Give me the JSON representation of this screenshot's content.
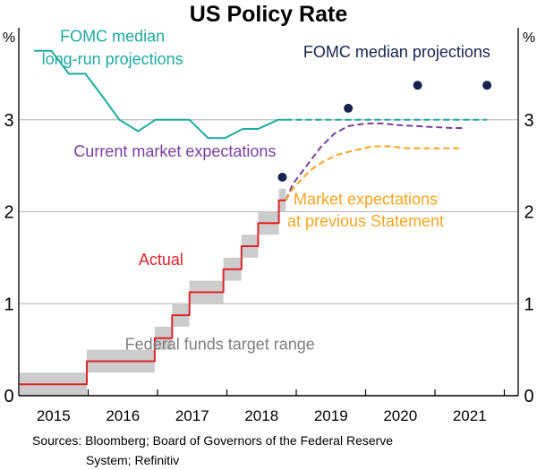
{
  "chart_data": {
    "type": "line",
    "title": "US Policy Rate",
    "y_unit_left": "%",
    "y_unit_right": "%",
    "ylim": [
      0,
      4
    ],
    "yticks": [
      0,
      1,
      2,
      3
    ],
    "xlim": [
      2015.0,
      2022.2
    ],
    "x_tick_boundaries": [
      2016,
      2017,
      2018,
      2019,
      2020,
      2021,
      2022
    ],
    "x_labels": [
      {
        "label": "2015",
        "center": 2015.5
      },
      {
        "label": "2016",
        "center": 2016.5
      },
      {
        "label": "2017",
        "center": 2017.5
      },
      {
        "label": "2018",
        "center": 2018.5
      },
      {
        "label": "2019",
        "center": 2019.5
      },
      {
        "label": "2020",
        "center": 2020.5
      },
      {
        "label": "2021",
        "center": 2021.5
      }
    ],
    "grid": true,
    "target_range": {
      "name": "Federal funds target range",
      "color": "#cccccc",
      "segments": [
        {
          "start": 2015.0,
          "end": 2015.98,
          "low": 0.0,
          "high": 0.25
        },
        {
          "start": 2015.98,
          "end": 2016.96,
          "low": 0.25,
          "high": 0.5
        },
        {
          "start": 2016.96,
          "end": 2017.21,
          "low": 0.5,
          "high": 0.75
        },
        {
          "start": 2017.21,
          "end": 2017.46,
          "low": 0.75,
          "high": 1.0
        },
        {
          "start": 2017.46,
          "end": 2017.95,
          "low": 1.0,
          "high": 1.25
        },
        {
          "start": 2017.95,
          "end": 2018.21,
          "low": 1.25,
          "high": 1.5
        },
        {
          "start": 2018.21,
          "end": 2018.45,
          "low": 1.5,
          "high": 1.75
        },
        {
          "start": 2018.45,
          "end": 2018.75,
          "low": 1.75,
          "high": 2.0
        },
        {
          "start": 2018.75,
          "end": 2018.85,
          "low": 2.0,
          "high": 2.25
        }
      ]
    },
    "series": [
      {
        "name": "Actual",
        "color": "#e0242b",
        "style": "step",
        "points": [
          [
            2015.0,
            0.125
          ],
          [
            2015.98,
            0.125
          ],
          [
            2015.98,
            0.375
          ],
          [
            2016.96,
            0.375
          ],
          [
            2016.96,
            0.625
          ],
          [
            2017.21,
            0.625
          ],
          [
            2017.21,
            0.875
          ],
          [
            2017.46,
            0.875
          ],
          [
            2017.46,
            1.125
          ],
          [
            2017.95,
            1.125
          ],
          [
            2017.95,
            1.375
          ],
          [
            2018.21,
            1.375
          ],
          [
            2018.21,
            1.625
          ],
          [
            2018.45,
            1.625
          ],
          [
            2018.45,
            1.875
          ],
          [
            2018.75,
            1.875
          ],
          [
            2018.75,
            2.125
          ],
          [
            2018.85,
            2.125
          ]
        ]
      },
      {
        "name": "FOMC median long-run projections",
        "color": "#1eaaa0",
        "style": "solid",
        "points": [
          [
            2015.22,
            3.75
          ],
          [
            2015.47,
            3.75
          ],
          [
            2015.72,
            3.5
          ],
          [
            2015.96,
            3.5
          ],
          [
            2016.21,
            3.25
          ],
          [
            2016.45,
            3.0
          ],
          [
            2016.72,
            2.875
          ],
          [
            2016.97,
            3.0
          ],
          [
            2017.21,
            3.0
          ],
          [
            2017.46,
            3.0
          ],
          [
            2017.73,
            2.8
          ],
          [
            2017.97,
            2.8
          ],
          [
            2018.23,
            2.9
          ],
          [
            2018.45,
            2.9
          ],
          [
            2018.74,
            3.0
          ],
          [
            2018.85,
            3.0
          ]
        ]
      },
      {
        "name": "FOMC median long-run projections (extension)",
        "color": "#1eaaa0",
        "style": "dashed",
        "points": [
          [
            2018.85,
            3.0
          ],
          [
            2021.75,
            3.0
          ]
        ]
      },
      {
        "name": "Current market expectations",
        "color": "#7b3f9e",
        "style": "dashed",
        "points": [
          [
            2018.85,
            2.125
          ],
          [
            2018.95,
            2.3
          ],
          [
            2019.05,
            2.4
          ],
          [
            2019.2,
            2.55
          ],
          [
            2019.35,
            2.7
          ],
          [
            2019.55,
            2.85
          ],
          [
            2019.75,
            2.93
          ],
          [
            2020.0,
            2.96
          ],
          [
            2020.25,
            2.96
          ],
          [
            2020.5,
            2.94
          ],
          [
            2020.75,
            2.93
          ],
          [
            2021.0,
            2.92
          ],
          [
            2021.25,
            2.91
          ],
          [
            2021.4,
            2.91
          ]
        ]
      },
      {
        "name": "Market expectations at previous Statement",
        "color": "#f5a623",
        "style": "dashed",
        "points": [
          [
            2018.85,
            2.125
          ],
          [
            2018.95,
            2.25
          ],
          [
            2019.05,
            2.33
          ],
          [
            2019.2,
            2.45
          ],
          [
            2019.4,
            2.55
          ],
          [
            2019.6,
            2.62
          ],
          [
            2019.85,
            2.67
          ],
          [
            2020.1,
            2.71
          ],
          [
            2020.35,
            2.71
          ],
          [
            2020.6,
            2.69
          ],
          [
            2020.85,
            2.69
          ],
          [
            2021.1,
            2.69
          ],
          [
            2021.35,
            2.69
          ]
        ]
      }
    ],
    "points_series": {
      "name": "FOMC median projections",
      "color": "#17234d",
      "points": [
        [
          2018.8,
          2.375
        ],
        [
          2019.75,
          3.125
        ],
        [
          2020.75,
          3.375
        ],
        [
          2021.75,
          3.375
        ]
      ]
    },
    "annotations": [
      {
        "text": "FOMC median",
        "color": "#1eaaa0",
        "at": [
          2016.35,
          3.85
        ]
      },
      {
        "text": "long-run projections",
        "color": "#1eaaa0",
        "at": [
          2016.35,
          3.6
        ]
      },
      {
        "text": "FOMC median projections",
        "color": "#17234d",
        "at": [
          2020.45,
          3.68
        ]
      },
      {
        "text": "Current market expectations",
        "color": "#7b3f9e",
        "at": [
          2017.25,
          2.6
        ]
      },
      {
        "text": "Market expectations",
        "color": "#f5a623",
        "at": [
          2020.0,
          2.08
        ]
      },
      {
        "text": "at previous Statement",
        "color": "#f5a623",
        "at": [
          2020.0,
          1.84
        ]
      },
      {
        "text": "Actual",
        "color": "#e0242b",
        "at": [
          2017.05,
          1.42
        ]
      },
      {
        "text": "Federal funds target range",
        "color": "#7f7f7f",
        "at": [
          2017.9,
          0.5
        ]
      }
    ],
    "source_note": [
      "Sources: Bloomberg; Board of Governors of the Federal Reserve",
      "System; Refinitiv"
    ]
  }
}
